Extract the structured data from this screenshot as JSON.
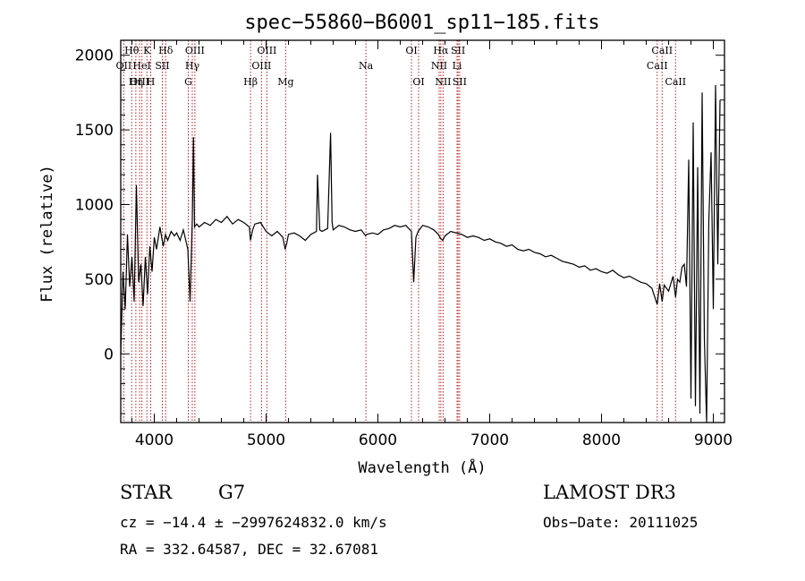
{
  "chart_data": {
    "type": "line",
    "title": "spec−55860−B6001_sp11−185.fits",
    "xlabel": "Wavelength (Å)",
    "ylabel": "Flux (relative)",
    "xlim": [
      3700,
      9100
    ],
    "ylim": [
      -460,
      2100
    ],
    "xticks": [
      4000,
      5000,
      6000,
      7000,
      8000,
      9000
    ],
    "yticks": [
      0,
      500,
      1000,
      1500,
      2000
    ],
    "series": [
      {
        "x": [
          3700,
          3720,
          3740,
          3760,
          3780,
          3800,
          3820,
          3840,
          3860,
          3880,
          3900,
          3920,
          3940,
          3960,
          3980,
          4000,
          4020,
          4050,
          4080,
          4100,
          4120,
          4150,
          4180,
          4200,
          4230,
          4260,
          4300,
          4320,
          4340,
          4350,
          4360,
          4380,
          4400,
          4450,
          4500,
          4550,
          4600,
          4650,
          4700,
          4750,
          4800,
          4850,
          4860,
          4880,
          4900,
          4950,
          5000,
          5050,
          5100,
          5150,
          5170,
          5185,
          5200,
          5250,
          5300,
          5350,
          5400,
          5450,
          5460,
          5480,
          5500,
          5550,
          5577,
          5590,
          5600,
          5650,
          5700,
          5750,
          5800,
          5850,
          5890,
          5900,
          5950,
          6000,
          6050,
          6100,
          6150,
          6200,
          6250,
          6300,
          6320,
          6340,
          6360,
          6400,
          6450,
          6500,
          6540,
          6563,
          6580,
          6600,
          6650,
          6700,
          6750,
          6800,
          6850,
          6900,
          6950,
          7000,
          7050,
          7100,
          7150,
          7200,
          7250,
          7300,
          7350,
          7400,
          7450,
          7500,
          7550,
          7600,
          7650,
          7700,
          7750,
          7800,
          7850,
          7900,
          7950,
          8000,
          8050,
          8100,
          8150,
          8200,
          8250,
          8300,
          8350,
          8400,
          8450,
          8498,
          8520,
          8542,
          8560,
          8600,
          8640,
          8662,
          8680,
          8700,
          8720,
          8740,
          8760,
          8780,
          8800,
          8820,
          8840,
          8860,
          8880,
          8900,
          8920,
          8940,
          8960,
          8980,
          9000,
          9020,
          9040,
          9060
        ],
        "y": [
          0,
          550,
          300,
          800,
          450,
          650,
          350,
          1130,
          480,
          600,
          320,
          650,
          400,
          720,
          550,
          780,
          700,
          850,
          720,
          800,
          760,
          820,
          790,
          810,
          760,
          830,
          700,
          350,
          900,
          1450,
          850,
          870,
          850,
          880,
          860,
          900,
          880,
          920,
          870,
          900,
          880,
          850,
          760,
          830,
          870,
          880,
          820,
          790,
          820,
          780,
          700,
          740,
          800,
          810,
          790,
          760,
          800,
          820,
          1200,
          830,
          820,
          840,
          1480,
          880,
          830,
          860,
          850,
          830,
          820,
          830,
          790,
          800,
          810,
          800,
          830,
          840,
          860,
          850,
          860,
          820,
          480,
          780,
          820,
          860,
          850,
          830,
          800,
          770,
          760,
          790,
          820,
          810,
          800,
          780,
          790,
          780,
          760,
          770,
          750,
          740,
          720,
          730,
          700,
          690,
          700,
          680,
          670,
          650,
          660,
          640,
          620,
          610,
          600,
          580,
          590,
          560,
          570,
          550,
          540,
          560,
          530,
          510,
          520,
          500,
          480,
          470,
          440,
          330,
          470,
          350,
          460,
          420,
          520,
          380,
          500,
          480,
          580,
          600,
          450,
          1300,
          -300,
          1550,
          -350,
          1250,
          -400,
          1750,
          100,
          -460,
          900,
          1350,
          300,
          1800,
          600,
          1700
        ]
      }
    ],
    "spectral_lines": [
      {
        "label": "Hθ",
        "wavelength": 3798,
        "row": 1
      },
      {
        "label": "OII",
        "wavelength": 3727,
        "row": 2
      },
      {
        "label": "OIII",
        "wavelength": 3869,
        "row": 3
      },
      {
        "label": "K",
        "wavelength": 3934,
        "row": 1
      },
      {
        "label": "H",
        "wavelength": 3968,
        "row": 3
      },
      {
        "label": "HeI",
        "wavelength": 3889,
        "row": 2
      },
      {
        "label": "Hη",
        "wavelength": 3835,
        "row": 3
      },
      {
        "label": "Hδ",
        "wavelength": 4102,
        "row": 1
      },
      {
        "label": "SII",
        "wavelength": 4072,
        "row": 2
      },
      {
        "label": "OIII",
        "wavelength": 4363,
        "row": 1
      },
      {
        "label": "Hγ",
        "wavelength": 4340,
        "row": 2
      },
      {
        "label": "G",
        "wavelength": 4304,
        "row": 3
      },
      {
        "label": "Hβ",
        "wavelength": 4861,
        "row": 3
      },
      {
        "label": "OIII",
        "wavelength": 5007,
        "row": 1
      },
      {
        "label": "OIII",
        "wavelength": 4959,
        "row": 2
      },
      {
        "label": "Mg",
        "wavelength": 5175,
        "row": 3
      },
      {
        "label": "Na",
        "wavelength": 5893,
        "row": 2
      },
      {
        "label": "OI",
        "wavelength": 6300,
        "row": 1
      },
      {
        "label": "OI",
        "wavelength": 6364,
        "row": 3
      },
      {
        "label": "Hα",
        "wavelength": 6563,
        "row": 1
      },
      {
        "label": "NII",
        "wavelength": 6548,
        "row": 2
      },
      {
        "label": "NII",
        "wavelength": 6583,
        "row": 3
      },
      {
        "label": "SII",
        "wavelength": 6717,
        "row": 1
      },
      {
        "label": "Li",
        "wavelength": 6708,
        "row": 2
      },
      {
        "label": "SII",
        "wavelength": 6731,
        "row": 3
      },
      {
        "label": "CaII",
        "wavelength": 8542,
        "row": 1
      },
      {
        "label": "CaII",
        "wavelength": 8498,
        "row": 2
      },
      {
        "label": "CaII",
        "wavelength": 8662,
        "row": 3
      }
    ]
  },
  "info": {
    "object_class": "STAR",
    "subclass": "G7",
    "survey": "LAMOST DR3",
    "redshift": "cz = −14.4 ± −2997624832.0 km/s",
    "obs_date": "Obs−Date: 20111025",
    "coords": "RA = 332.64587, DEC =  32.67081"
  },
  "colors": {
    "spectrum": "#000000",
    "line_markers": "#b22222"
  }
}
